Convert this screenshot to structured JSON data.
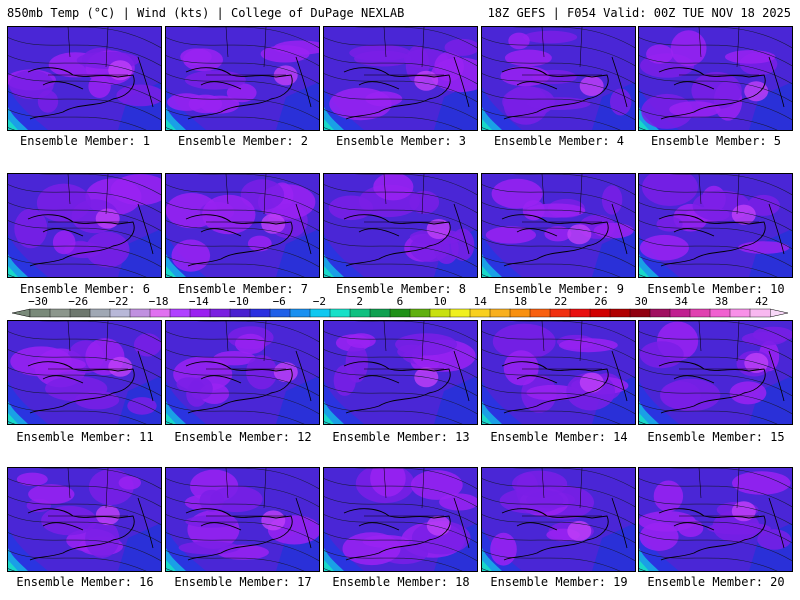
{
  "header": {
    "left": "850mb Temp (°C) | Wind (kts) | College of DuPage NEXLAB",
    "right": "18Z GEFS | F054 Valid: 00Z TUE NOV 18 2025"
  },
  "panels": [
    {
      "label": "Ensemble Member: 1"
    },
    {
      "label": "Ensemble Member: 2"
    },
    {
      "label": "Ensemble Member: 3"
    },
    {
      "label": "Ensemble Member: 4"
    },
    {
      "label": "Ensemble Member: 5"
    },
    {
      "label": "Ensemble Member: 6"
    },
    {
      "label": "Ensemble Member: 7"
    },
    {
      "label": "Ensemble Member: 8"
    },
    {
      "label": "Ensemble Member: 9"
    },
    {
      "label": "Ensemble Member: 10"
    },
    {
      "label": "Ensemble Member: 11"
    },
    {
      "label": "Ensemble Member: 12"
    },
    {
      "label": "Ensemble Member: 13"
    },
    {
      "label": "Ensemble Member: 14"
    },
    {
      "label": "Ensemble Member: 15"
    },
    {
      "label": "Ensemble Member: 16"
    },
    {
      "label": "Ensemble Member: 17"
    },
    {
      "label": "Ensemble Member: 18"
    },
    {
      "label": "Ensemble Member: 19"
    },
    {
      "label": "Ensemble Member: 20"
    }
  ],
  "colorbar": {
    "tick_labels": [
      "−30",
      "−26",
      "−22",
      "−18",
      "−14",
      "−10",
      "−6",
      "−2",
      "2",
      "6",
      "10",
      "14",
      "18",
      "22",
      "26",
      "30",
      "34",
      "38",
      "42"
    ],
    "colors": [
      "#7a8a7a",
      "#8c968c",
      "#6e786e",
      "#a0a8b4",
      "#b8b8d8",
      "#c090e0",
      "#e070f0",
      "#b040ff",
      "#9a20f0",
      "#7a20e0",
      "#4a20d0",
      "#2a30e0",
      "#2060e8",
      "#1a90f0",
      "#10c8f0",
      "#18e0c8",
      "#10c080",
      "#10a050",
      "#209018",
      "#60b010",
      "#c8e010",
      "#f0f020",
      "#f8d020",
      "#f8b020",
      "#f89010",
      "#f86010",
      "#f03010",
      "#e81010",
      "#d00000",
      "#b00000",
      "#900010",
      "#a01060",
      "#c02090",
      "#e040b0",
      "#f060d0",
      "#f890e8",
      "#f8b8f0"
    ]
  }
}
